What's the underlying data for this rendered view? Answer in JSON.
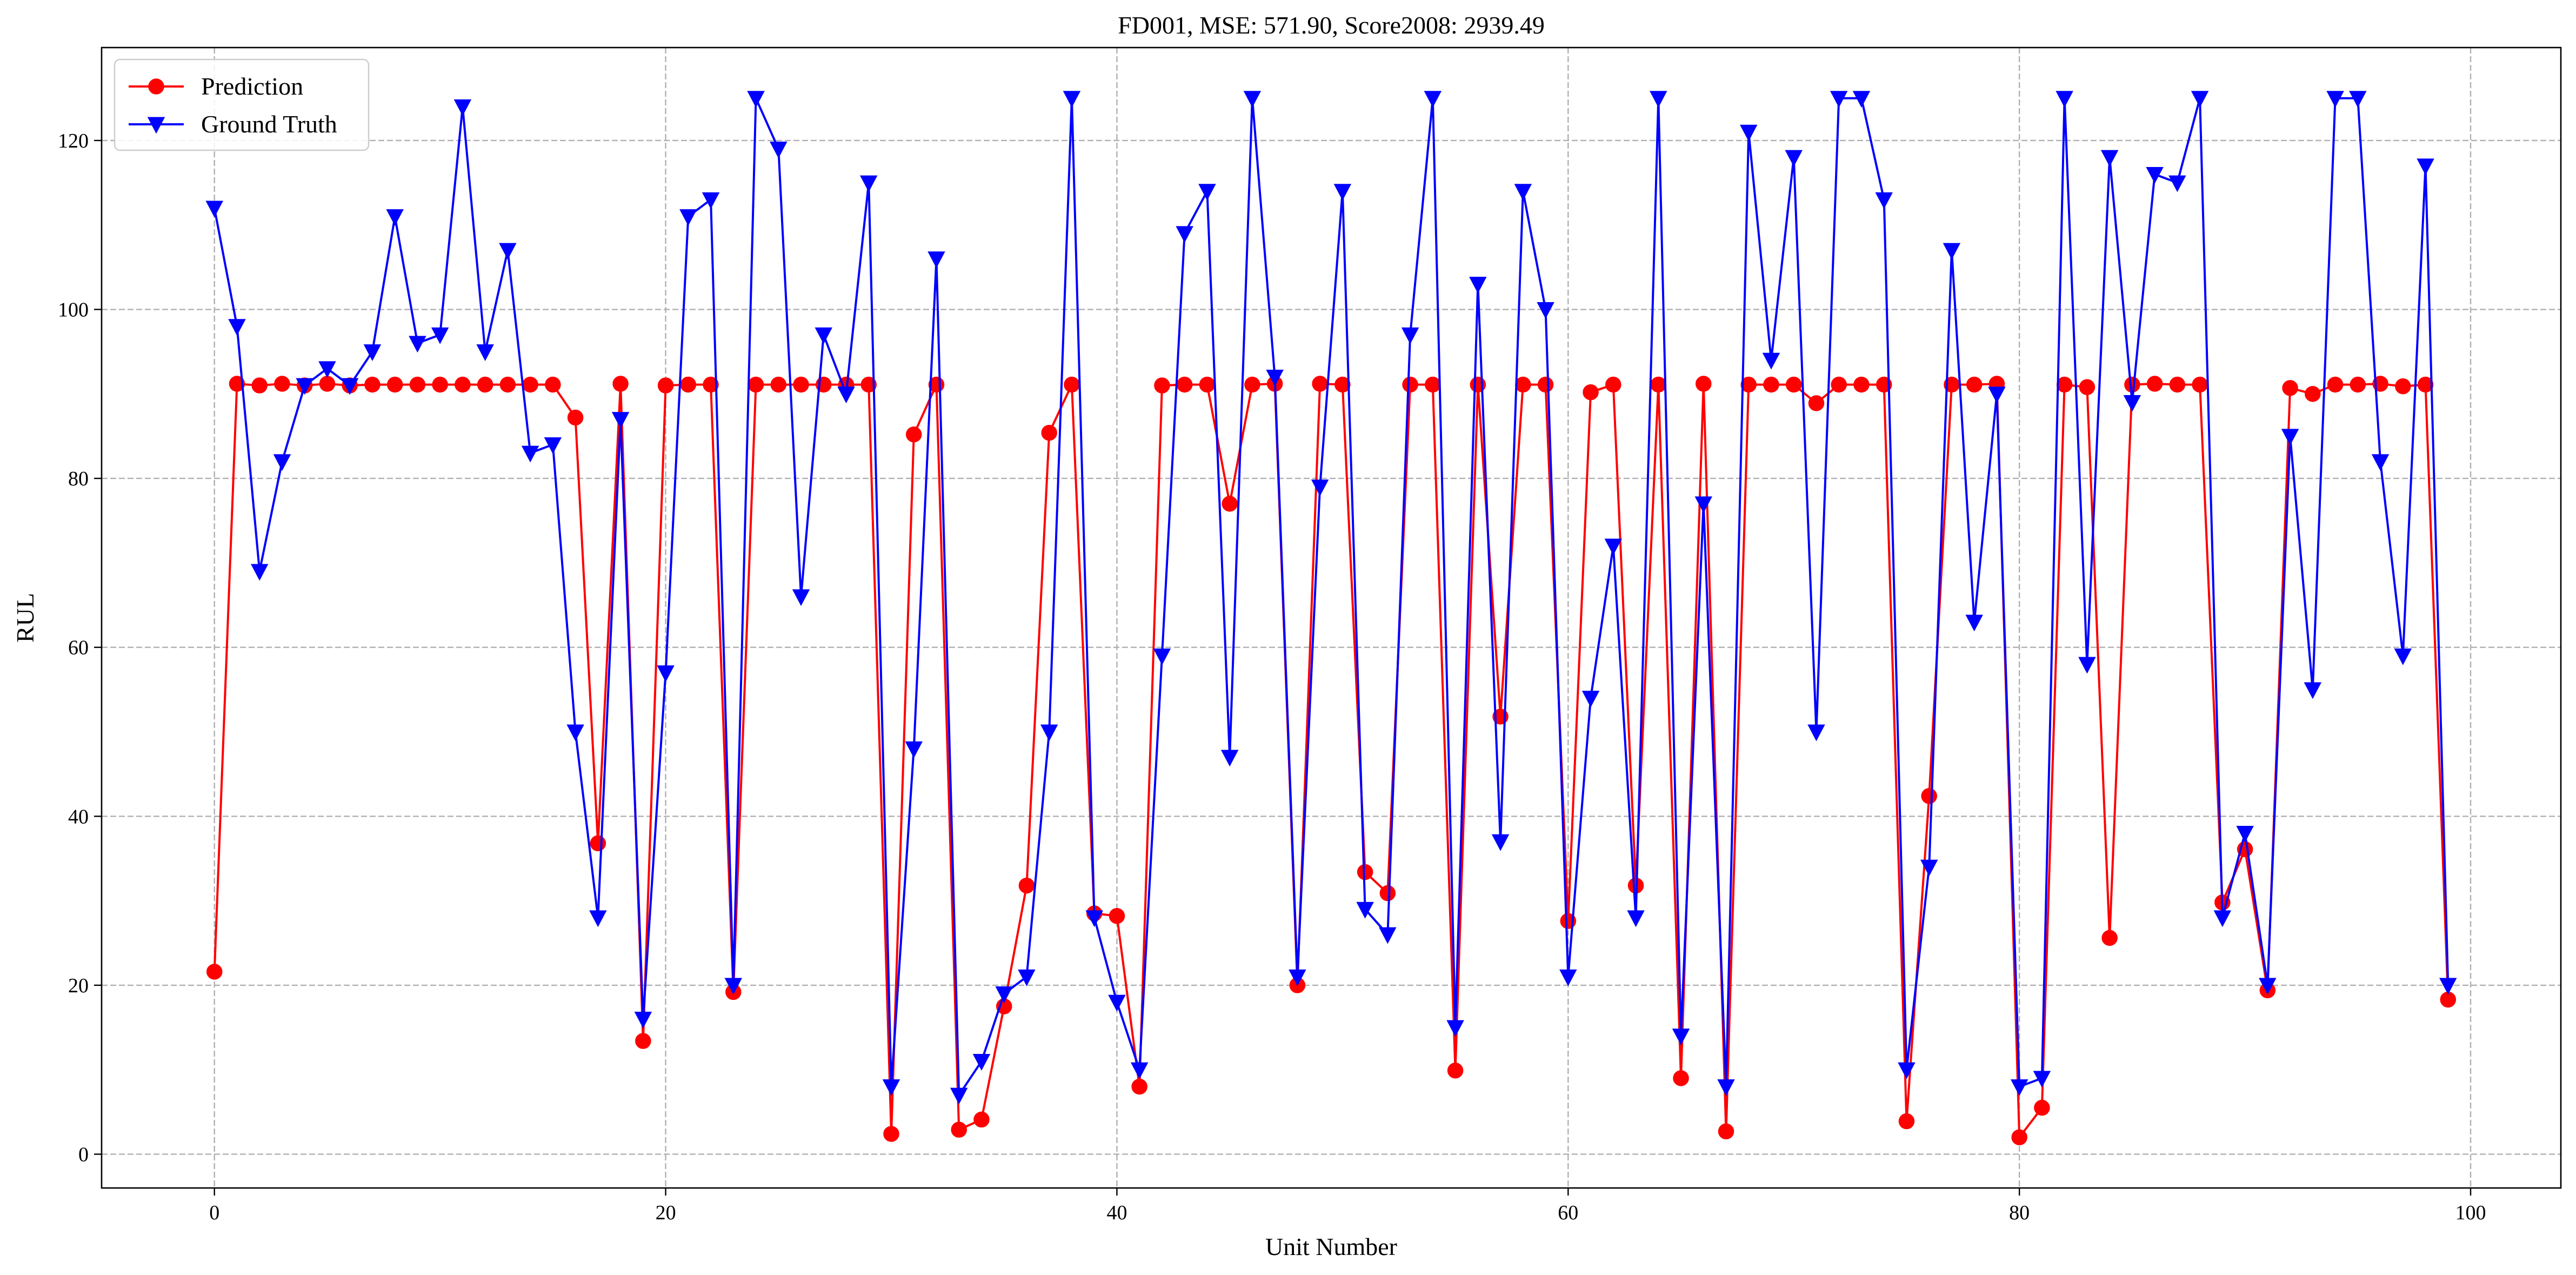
{
  "chart_data": {
    "type": "line",
    "title": "FD001, MSE: 571.90, Score2008: 2939.49",
    "xlabel": "Unit Number",
    "ylabel": "RUL",
    "xlim": [
      -5,
      104
    ],
    "ylim": [
      -4,
      131
    ],
    "xticks": [
      0,
      20,
      40,
      60,
      80,
      100
    ],
    "yticks": [
      0,
      20,
      40,
      60,
      80,
      100,
      120
    ],
    "grid": true,
    "grid_style": "dashed",
    "legend_position": "top-left",
    "series": [
      {
        "name": "Prediction",
        "color": "#ff0000",
        "marker": "circle",
        "values": [
          21.6,
          91.2,
          91.0,
          91.2,
          91.0,
          91.2,
          91.0,
          91.1,
          91.1,
          91.1,
          91.1,
          91.1,
          91.1,
          91.1,
          91.1,
          91.1,
          87.2,
          36.8,
          91.2,
          13.4,
          91.0,
          91.1,
          91.1,
          19.2,
          91.1,
          91.1,
          91.1,
          91.1,
          91.1,
          91.1,
          2.4,
          85.2,
          91.1,
          2.9,
          4.1,
          17.5,
          31.8,
          85.4,
          91.1,
          28.5,
          28.2,
          8.0,
          91.0,
          91.1,
          91.1,
          77.0,
          91.1,
          91.2,
          20.0,
          91.2,
          91.1,
          33.4,
          30.9,
          91.1,
          91.1,
          9.9,
          91.1,
          51.8,
          91.1,
          91.1,
          27.6,
          90.2,
          91.1,
          31.8,
          91.1,
          9.0,
          91.2,
          2.7,
          91.1,
          91.1,
          91.1,
          88.9,
          91.1,
          91.1,
          91.1,
          3.9,
          42.4,
          91.1,
          91.1,
          91.2,
          2.0,
          5.5,
          91.1,
          90.8,
          25.6,
          91.1,
          91.2,
          91.1,
          91.1,
          29.8,
          36.1,
          19.4,
          90.7,
          90.0,
          91.1,
          91.1,
          91.2,
          90.9,
          91.1,
          18.3
        ]
      },
      {
        "name": "Ground Truth",
        "color": "#0000ff",
        "marker": "triangle-down",
        "values": [
          112,
          98,
          69,
          82,
          91,
          93,
          91,
          95,
          111,
          96,
          97,
          124,
          95,
          107,
          83,
          84,
          50,
          28,
          87,
          16,
          57,
          111,
          113,
          20,
          125,
          119,
          66,
          97,
          90,
          115,
          8,
          48,
          106,
          7,
          11,
          19,
          21,
          50,
          125,
          28,
          18,
          10,
          59,
          109,
          114,
          47,
          125,
          92,
          21,
          79,
          114,
          29,
          26,
          97,
          125,
          15,
          103,
          37,
          114,
          100,
          21,
          54,
          72,
          28,
          125,
          14,
          77,
          8,
          121,
          94,
          118,
          50,
          125,
          125,
          113,
          10,
          34,
          107,
          63,
          90,
          8,
          9,
          125,
          58,
          118,
          89,
          116,
          115,
          125,
          28,
          38,
          20,
          85,
          55,
          125,
          125,
          82,
          59,
          117,
          20
        ]
      }
    ]
  }
}
